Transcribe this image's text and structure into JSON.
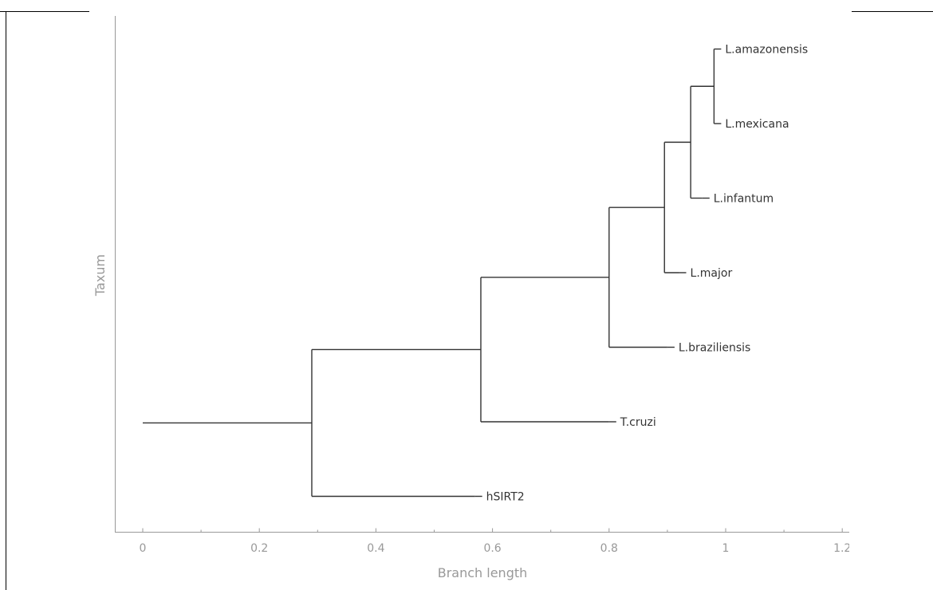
{
  "chart_data": {
    "type": "dendrogram",
    "xlabel": "Branch length",
    "ylabel": "Taxum",
    "xlim": [
      -0.05,
      1.2
    ],
    "xticks": [
      {
        "value": 0,
        "label": "0"
      },
      {
        "value": 0.2,
        "label": "0.2"
      },
      {
        "value": 0.4,
        "label": "0.4"
      },
      {
        "value": 0.6,
        "label": "0.6"
      },
      {
        "value": 0.8,
        "label": "0.8"
      },
      {
        "value": 1,
        "label": "1"
      },
      {
        "value": 1.2,
        "label": "1.2"
      }
    ],
    "minor_ticks": [
      0.1,
      0.3,
      0.5,
      0.7,
      0.9,
      1.1
    ],
    "leaves": [
      {
        "name": "L.amazonensis",
        "x": 0.98,
        "order": 0
      },
      {
        "name": "L.mexicana",
        "x": 0.98,
        "order": 1
      },
      {
        "name": "L.infantum",
        "x": 0.96,
        "order": 2
      },
      {
        "name": "L.major",
        "x": 0.92,
        "order": 3
      },
      {
        "name": "L.braziliensis",
        "x": 0.9,
        "order": 4
      },
      {
        "name": "T.cruzi",
        "x": 0.8,
        "order": 5
      },
      {
        "name": "hSIRT2",
        "x": 0.57,
        "order": 6
      }
    ],
    "nodes": [
      {
        "id": "n1",
        "x": 0.98,
        "children": [
          "L.amazonensis",
          "L.mexicana"
        ]
      },
      {
        "id": "n2",
        "x": 0.94,
        "children": [
          "n1",
          "L.infantum"
        ]
      },
      {
        "id": "n3",
        "x": 0.895,
        "children": [
          "n2",
          "L.major"
        ]
      },
      {
        "id": "n4",
        "x": 0.8,
        "children": [
          "n3",
          "L.braziliensis"
        ]
      },
      {
        "id": "n5",
        "x": 0.58,
        "children": [
          "n4",
          "T.cruzi"
        ]
      },
      {
        "id": "n6",
        "x": 0.29,
        "children": [
          "n5",
          "hSIRT2"
        ]
      }
    ],
    "root": {
      "child": "n6",
      "x": 0
    },
    "grid": false,
    "legend": "none"
  }
}
